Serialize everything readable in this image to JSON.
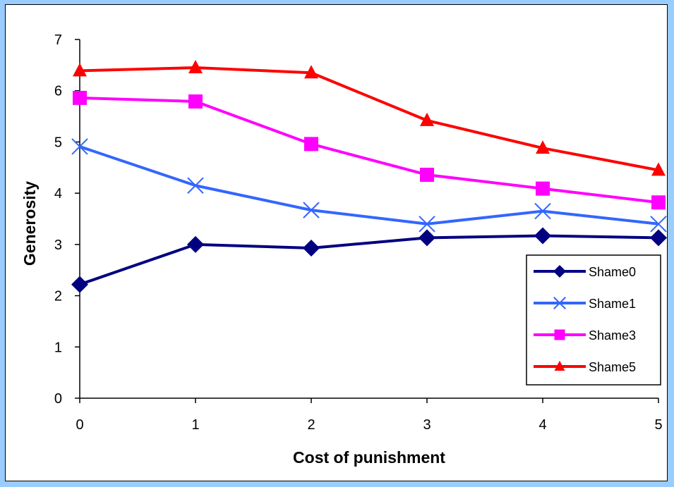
{
  "colors": {
    "background": "#99ccff",
    "plot_area": "#ffffff",
    "axis": "#000000"
  },
  "chart_data": {
    "type": "line",
    "xlabel": "Cost of punishment",
    "ylabel": "Generosity",
    "xlim": [
      0,
      5
    ],
    "ylim": [
      0,
      7
    ],
    "x": [
      0,
      1,
      2,
      3,
      4,
      5
    ],
    "x_tick_labels": [
      "0",
      "1",
      "2",
      "3",
      "4",
      "5"
    ],
    "y_ticks": [
      0,
      1,
      2,
      3,
      4,
      5,
      6,
      7
    ],
    "y_tick_labels": [
      "0",
      "1",
      "2",
      "3",
      "4",
      "5",
      "6",
      "7"
    ],
    "grid": false,
    "legend_position": "bottom-right",
    "series": [
      {
        "name": "Shame0",
        "color": "#000080",
        "marker": "diamond",
        "values": [
          2.22,
          3.0,
          2.93,
          3.13,
          3.17,
          3.13
        ]
      },
      {
        "name": "Shame1",
        "color": "#3366ff",
        "marker": "x",
        "values": [
          4.91,
          4.15,
          3.67,
          3.4,
          3.65,
          3.4
        ]
      },
      {
        "name": "Shame3",
        "color": "#ff00ff",
        "marker": "square",
        "values": [
          5.86,
          5.79,
          4.96,
          4.36,
          4.09,
          3.82
        ]
      },
      {
        "name": "Shame5",
        "color": "#ff0000",
        "marker": "triangle",
        "values": [
          6.39,
          6.45,
          6.35,
          5.42,
          4.88,
          4.45
        ]
      }
    ]
  }
}
